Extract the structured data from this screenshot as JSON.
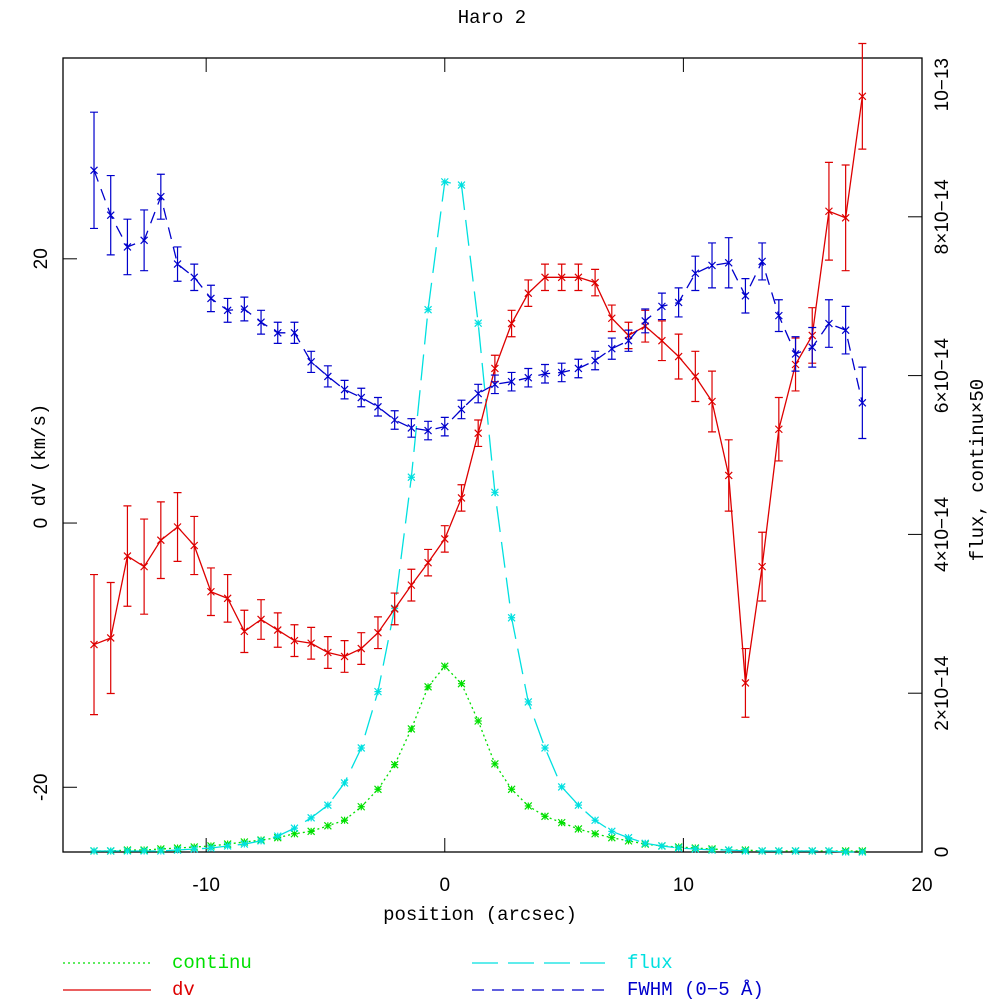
{
  "chart_data": {
    "type": "line",
    "title": "Haro 2",
    "x_label": "position (arcsec)",
    "y_label": "dV (km/s)",
    "y2_label": "flux, continu×50",
    "xlim": [
      -16,
      20
    ],
    "xticks": [
      -10,
      0,
      10,
      20
    ],
    "ylim": [
      -24.9,
      35.2
    ],
    "yticks": [
      -20,
      0,
      20
    ],
    "y2lim": [
      0,
      1e-13
    ],
    "y2ticks": [
      0,
      {
        "value": 2e-14,
        "label": "2×10−14"
      },
      {
        "value": 4e-14,
        "label": "4×10−14"
      },
      {
        "value": 6e-14,
        "label": "6×10−14"
      },
      {
        "value": 8e-14,
        "label": "8×10−14"
      },
      {
        "value": 1e-13,
        "label": "10−13"
      }
    ],
    "x": [
      -14.7,
      -14.0,
      -13.3,
      -12.6,
      -11.9,
      -11.2,
      -10.5,
      -9.8,
      -9.1,
      -8.4,
      -7.7,
      -7.0,
      -6.3,
      -5.6,
      -4.9,
      -4.2,
      -3.5,
      -2.8,
      -2.1,
      -1.4,
      -0.7,
      0.0,
      0.7,
      1.4,
      2.1,
      2.8,
      3.5,
      4.2,
      4.9,
      5.6,
      6.3,
      7.0,
      7.7,
      8.4,
      9.1,
      9.8,
      10.5,
      11.2,
      11.9,
      12.6,
      13.3,
      14.0,
      14.7,
      15.4,
      16.1,
      16.8,
      17.5
    ],
    "series": [
      {
        "name": "continu",
        "color": "#00e000",
        "axis": "y2",
        "style": "dotted",
        "marker": "star",
        "values": [
          1.3e-16,
          1.3e-16,
          2.5e-16,
          2.5e-16,
          3.8e-16,
          5e-16,
          6.3e-16,
          7.6e-16,
          1e-15,
          1.26e-15,
          1.5e-15,
          1.8e-15,
          2.3e-15,
          2.6e-15,
          3.3e-15,
          4e-15,
          5.7e-15,
          7.9e-15,
          1.1e-14,
          1.55e-14,
          2.08e-14,
          2.34e-14,
          2.12e-14,
          1.65e-14,
          1.11e-14,
          7.9e-15,
          5.8e-15,
          4.5e-15,
          3.7e-15,
          2.9e-15,
          2.3e-15,
          1.8e-15,
          1.4e-15,
          1e-15,
          7.6e-16,
          6.3e-16,
          5e-16,
          3.8e-16,
          2.5e-16,
          2.5e-16,
          1.3e-16,
          1.3e-16,
          1.3e-16,
          1.3e-16,
          1.3e-16,
          1.3e-16,
          1.3e-16
        ]
      },
      {
        "name": "flux",
        "color": "#00e0e0",
        "axis": "y2",
        "style": "longdash",
        "marker": "star",
        "values": [
          1.3e-16,
          1.3e-16,
          1.3e-16,
          1.3e-16,
          1.3e-16,
          2.5e-16,
          3.8e-16,
          5e-16,
          7.6e-16,
          1e-15,
          1.4e-15,
          2e-15,
          3e-15,
          4.3e-15,
          5.9e-15,
          8.7e-15,
          1.31e-14,
          2.02e-14,
          3.07e-14,
          4.72e-14,
          6.83e-14,
          8.44e-14,
          8.4e-14,
          6.66e-14,
          4.53e-14,
          2.95e-14,
          1.89e-14,
          1.31e-14,
          8.2e-15,
          5.9e-15,
          4e-15,
          2.6e-15,
          1.8e-15,
          1.1e-15,
          7.6e-16,
          5e-16,
          3.8e-16,
          2.5e-16,
          2.5e-16,
          1.3e-16,
          1.3e-16,
          1.3e-16,
          1.3e-16,
          1.3e-16,
          1.3e-16,
          0,
          0
        ]
      },
      {
        "name": "dv",
        "color": "#dd0000",
        "style": "solid",
        "marker": "x",
        "values": [
          -9.2,
          -8.7,
          -2.5,
          -3.3,
          -1.3,
          -0.3,
          -1.7,
          -5.2,
          -5.7,
          -8.2,
          -7.3,
          -8.1,
          -8.9,
          -9.1,
          -9.8,
          -10.1,
          -9.5,
          -8.3,
          -6.5,
          -4.7,
          -3.0,
          -1.2,
          1.9,
          6.8,
          11.7,
          15.1,
          17.4,
          18.6,
          18.6,
          18.6,
          18.2,
          15.5,
          14.2,
          14.9,
          13.8,
          12.6,
          11.1,
          9.2,
          3.6,
          -12.1,
          -3.3,
          7.1,
          12.0,
          14.2,
          23.6,
          23.1,
          32.3
        ],
        "errors": [
          5.3,
          4.2,
          3.8,
          3.6,
          2.9,
          2.6,
          2.2,
          1.8,
          1.8,
          1.6,
          1.5,
          1.3,
          1.2,
          1.2,
          1.2,
          1.2,
          1.2,
          1.2,
          1.2,
          1.2,
          1.0,
          1.0,
          1.0,
          1.0,
          1.0,
          1.0,
          1.0,
          1.0,
          1.0,
          1.0,
          1.0,
          1.0,
          1.0,
          1.2,
          1.5,
          1.7,
          1.9,
          2.3,
          2.7,
          2.6,
          2.6,
          2.4,
          2.0,
          2.1,
          3.7,
          4.0,
          4.0
        ]
      },
      {
        "name": "FWHM (0−5 Å)",
        "color": "#0000cc",
        "style": "dashed",
        "marker": "x",
        "values": [
          26.7,
          23.3,
          20.9,
          21.4,
          24.7,
          19.6,
          18.6,
          17.0,
          16.1,
          16.2,
          15.2,
          14.4,
          14.4,
          12.2,
          11.1,
          10.1,
          9.5,
          8.8,
          7.8,
          7.2,
          7.0,
          7.3,
          8.6,
          9.8,
          10.5,
          10.7,
          11.0,
          11.3,
          11.4,
          11.7,
          12.3,
          13.2,
          13.8,
          15.3,
          16.4,
          16.7,
          18.9,
          19.5,
          19.7,
          17.2,
          19.8,
          15.7,
          12.8,
          13.3,
          15.1,
          14.6,
          9.1
        ],
        "errors": [
          4.4,
          3.0,
          2.1,
          2.3,
          1.7,
          1.3,
          1.0,
          1.0,
          0.9,
          0.9,
          0.9,
          0.8,
          0.8,
          0.8,
          0.8,
          0.7,
          0.7,
          0.7,
          0.7,
          0.7,
          0.7,
          0.7,
          0.7,
          0.7,
          0.7,
          0.7,
          0.7,
          0.7,
          0.7,
          0.7,
          0.7,
          0.8,
          0.8,
          0.9,
          1.0,
          1.1,
          1.3,
          1.7,
          1.9,
          1.3,
          1.4,
          1.2,
          1.3,
          1.5,
          1.8,
          1.8,
          2.7
        ]
      }
    ]
  }
}
